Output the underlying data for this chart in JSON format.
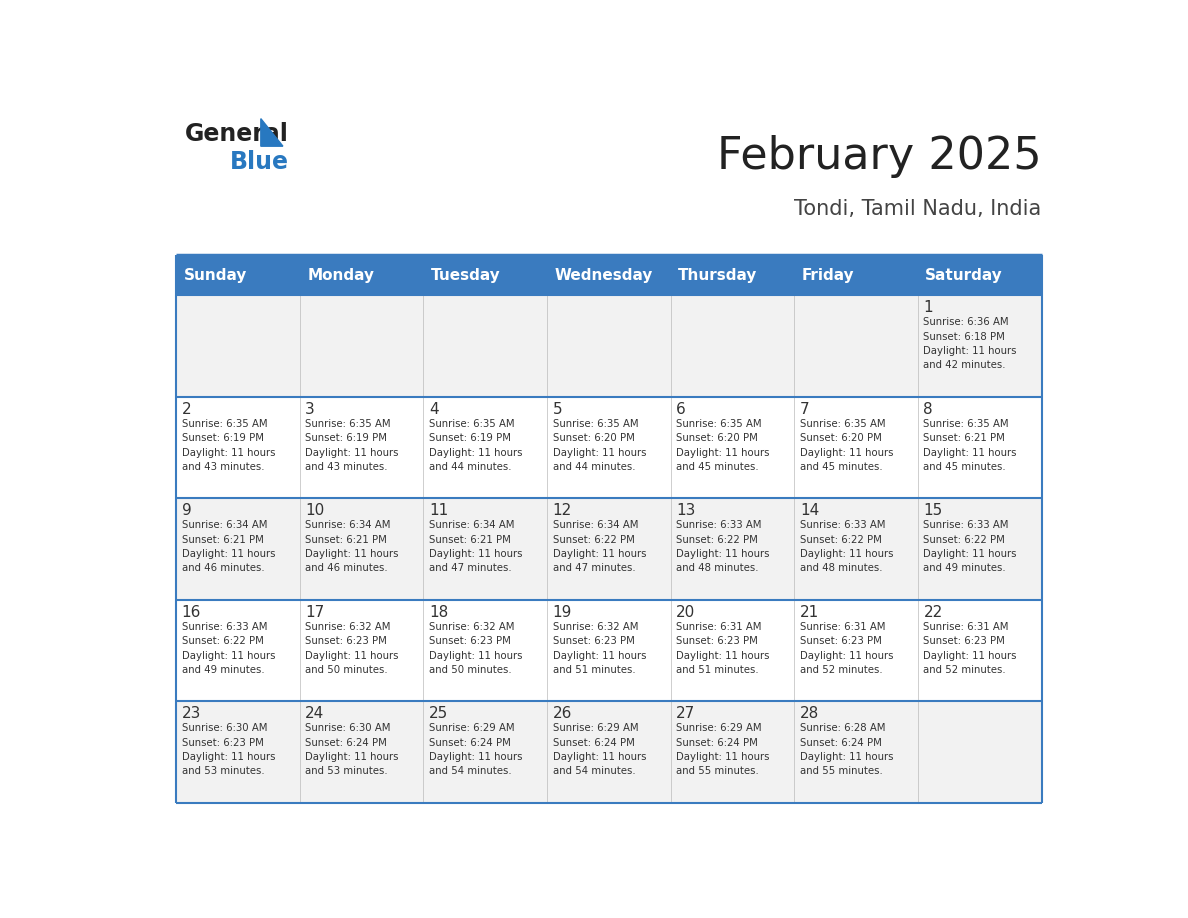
{
  "title": "February 2025",
  "subtitle": "Tondi, Tamil Nadu, India",
  "header_bg": "#3a7bbf",
  "header_text_color": "#ffffff",
  "days_of_week": [
    "Sunday",
    "Monday",
    "Tuesday",
    "Wednesday",
    "Thursday",
    "Friday",
    "Saturday"
  ],
  "row_bg_odd": "#f2f2f2",
  "row_bg_even": "#ffffff",
  "cell_text_color": "#333333",
  "day_num_color": "#333333",
  "border_color": "#3a7bbf",
  "title_color": "#222222",
  "subtitle_color": "#444444",
  "generalblue_black": "#222222",
  "generalblue_blue": "#2878c0",
  "calendar_data": [
    [
      {
        "day": null,
        "info": null
      },
      {
        "day": null,
        "info": null
      },
      {
        "day": null,
        "info": null
      },
      {
        "day": null,
        "info": null
      },
      {
        "day": null,
        "info": null
      },
      {
        "day": null,
        "info": null
      },
      {
        "day": 1,
        "info": "Sunrise: 6:36 AM\nSunset: 6:18 PM\nDaylight: 11 hours\nand 42 minutes."
      }
    ],
    [
      {
        "day": 2,
        "info": "Sunrise: 6:35 AM\nSunset: 6:19 PM\nDaylight: 11 hours\nand 43 minutes."
      },
      {
        "day": 3,
        "info": "Sunrise: 6:35 AM\nSunset: 6:19 PM\nDaylight: 11 hours\nand 43 minutes."
      },
      {
        "day": 4,
        "info": "Sunrise: 6:35 AM\nSunset: 6:19 PM\nDaylight: 11 hours\nand 44 minutes."
      },
      {
        "day": 5,
        "info": "Sunrise: 6:35 AM\nSunset: 6:20 PM\nDaylight: 11 hours\nand 44 minutes."
      },
      {
        "day": 6,
        "info": "Sunrise: 6:35 AM\nSunset: 6:20 PM\nDaylight: 11 hours\nand 45 minutes."
      },
      {
        "day": 7,
        "info": "Sunrise: 6:35 AM\nSunset: 6:20 PM\nDaylight: 11 hours\nand 45 minutes."
      },
      {
        "day": 8,
        "info": "Sunrise: 6:35 AM\nSunset: 6:21 PM\nDaylight: 11 hours\nand 45 minutes."
      }
    ],
    [
      {
        "day": 9,
        "info": "Sunrise: 6:34 AM\nSunset: 6:21 PM\nDaylight: 11 hours\nand 46 minutes."
      },
      {
        "day": 10,
        "info": "Sunrise: 6:34 AM\nSunset: 6:21 PM\nDaylight: 11 hours\nand 46 minutes."
      },
      {
        "day": 11,
        "info": "Sunrise: 6:34 AM\nSunset: 6:21 PM\nDaylight: 11 hours\nand 47 minutes."
      },
      {
        "day": 12,
        "info": "Sunrise: 6:34 AM\nSunset: 6:22 PM\nDaylight: 11 hours\nand 47 minutes."
      },
      {
        "day": 13,
        "info": "Sunrise: 6:33 AM\nSunset: 6:22 PM\nDaylight: 11 hours\nand 48 minutes."
      },
      {
        "day": 14,
        "info": "Sunrise: 6:33 AM\nSunset: 6:22 PM\nDaylight: 11 hours\nand 48 minutes."
      },
      {
        "day": 15,
        "info": "Sunrise: 6:33 AM\nSunset: 6:22 PM\nDaylight: 11 hours\nand 49 minutes."
      }
    ],
    [
      {
        "day": 16,
        "info": "Sunrise: 6:33 AM\nSunset: 6:22 PM\nDaylight: 11 hours\nand 49 minutes."
      },
      {
        "day": 17,
        "info": "Sunrise: 6:32 AM\nSunset: 6:23 PM\nDaylight: 11 hours\nand 50 minutes."
      },
      {
        "day": 18,
        "info": "Sunrise: 6:32 AM\nSunset: 6:23 PM\nDaylight: 11 hours\nand 50 minutes."
      },
      {
        "day": 19,
        "info": "Sunrise: 6:32 AM\nSunset: 6:23 PM\nDaylight: 11 hours\nand 51 minutes."
      },
      {
        "day": 20,
        "info": "Sunrise: 6:31 AM\nSunset: 6:23 PM\nDaylight: 11 hours\nand 51 minutes."
      },
      {
        "day": 21,
        "info": "Sunrise: 6:31 AM\nSunset: 6:23 PM\nDaylight: 11 hours\nand 52 minutes."
      },
      {
        "day": 22,
        "info": "Sunrise: 6:31 AM\nSunset: 6:23 PM\nDaylight: 11 hours\nand 52 minutes."
      }
    ],
    [
      {
        "day": 23,
        "info": "Sunrise: 6:30 AM\nSunset: 6:23 PM\nDaylight: 11 hours\nand 53 minutes."
      },
      {
        "day": 24,
        "info": "Sunrise: 6:30 AM\nSunset: 6:24 PM\nDaylight: 11 hours\nand 53 minutes."
      },
      {
        "day": 25,
        "info": "Sunrise: 6:29 AM\nSunset: 6:24 PM\nDaylight: 11 hours\nand 54 minutes."
      },
      {
        "day": 26,
        "info": "Sunrise: 6:29 AM\nSunset: 6:24 PM\nDaylight: 11 hours\nand 54 minutes."
      },
      {
        "day": 27,
        "info": "Sunrise: 6:29 AM\nSunset: 6:24 PM\nDaylight: 11 hours\nand 55 minutes."
      },
      {
        "day": 28,
        "info": "Sunrise: 6:28 AM\nSunset: 6:24 PM\nDaylight: 11 hours\nand 55 minutes."
      },
      {
        "day": null,
        "info": null
      }
    ]
  ]
}
